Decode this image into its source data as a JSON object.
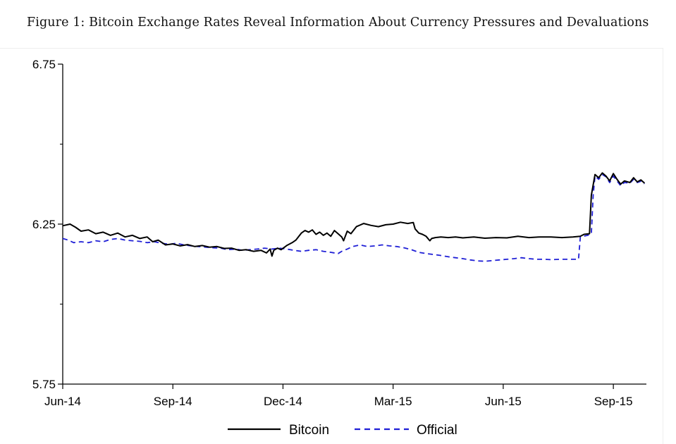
{
  "figure": {
    "title": "Figure 1: Bitcoin Exchange Rates Reveal Information About Currency Pressures and Devaluations"
  },
  "chart_data": {
    "type": "line",
    "title": "Figure 1: Bitcoin Exchange Rates Reveal Information About Currency Pressures and Devaluations",
    "xlabel": "",
    "ylabel": "",
    "x_unit": "months since Jun-14",
    "xlim": [
      0,
      15.9
    ],
    "ylim": [
      5.75,
      6.75
    ],
    "y_ticks": [
      5.75,
      6.25,
      6.75
    ],
    "y_tick_labels": [
      "5.75",
      "6.25",
      "6.75"
    ],
    "y_minor_ticks": [
      6.0,
      6.5
    ],
    "x_ticks": [
      0,
      3,
      6,
      9,
      12,
      15
    ],
    "x_tick_labels": [
      "Jun-14",
      "Sep-14",
      "Dec-14",
      "Mar-15",
      "Jun-15",
      "Sep-15"
    ],
    "grid": false,
    "legend_position": "bottom-center",
    "series": [
      {
        "name": "Bitcoin",
        "color": "#000000",
        "style": "solid",
        "points": [
          [
            0.0,
            6.245
          ],
          [
            0.2,
            6.25
          ],
          [
            0.35,
            6.24
          ],
          [
            0.5,
            6.228
          ],
          [
            0.7,
            6.232
          ],
          [
            0.9,
            6.22
          ],
          [
            1.1,
            6.225
          ],
          [
            1.3,
            6.215
          ],
          [
            1.5,
            6.222
          ],
          [
            1.7,
            6.21
          ],
          [
            1.9,
            6.215
          ],
          [
            2.1,
            6.205
          ],
          [
            2.3,
            6.21
          ],
          [
            2.45,
            6.195
          ],
          [
            2.6,
            6.2
          ],
          [
            2.8,
            6.185
          ],
          [
            3.0,
            6.188
          ],
          [
            3.2,
            6.182
          ],
          [
            3.4,
            6.186
          ],
          [
            3.6,
            6.18
          ],
          [
            3.8,
            6.183
          ],
          [
            4.0,
            6.178
          ],
          [
            4.2,
            6.18
          ],
          [
            4.4,
            6.174
          ],
          [
            4.6,
            6.175
          ],
          [
            4.8,
            6.168
          ],
          [
            5.0,
            6.17
          ],
          [
            5.2,
            6.165
          ],
          [
            5.4,
            6.168
          ],
          [
            5.55,
            6.16
          ],
          [
            5.65,
            6.172
          ],
          [
            5.7,
            6.15
          ],
          [
            5.75,
            6.168
          ],
          [
            5.85,
            6.175
          ],
          [
            5.95,
            6.17
          ],
          [
            6.1,
            6.183
          ],
          [
            6.25,
            6.192
          ],
          [
            6.35,
            6.2
          ],
          [
            6.5,
            6.222
          ],
          [
            6.6,
            6.23
          ],
          [
            6.7,
            6.225
          ],
          [
            6.8,
            6.232
          ],
          [
            6.9,
            6.218
          ],
          [
            7.0,
            6.225
          ],
          [
            7.1,
            6.215
          ],
          [
            7.2,
            6.222
          ],
          [
            7.3,
            6.212
          ],
          [
            7.4,
            6.23
          ],
          [
            7.5,
            6.22
          ],
          [
            7.6,
            6.21
          ],
          [
            7.65,
            6.198
          ],
          [
            7.75,
            6.228
          ],
          [
            7.85,
            6.22
          ],
          [
            8.0,
            6.242
          ],
          [
            8.2,
            6.252
          ],
          [
            8.4,
            6.246
          ],
          [
            8.6,
            6.242
          ],
          [
            8.8,
            6.248
          ],
          [
            9.0,
            6.25
          ],
          [
            9.2,
            6.256
          ],
          [
            9.4,
            6.252
          ],
          [
            9.55,
            6.255
          ],
          [
            9.6,
            6.235
          ],
          [
            9.7,
            6.222
          ],
          [
            9.8,
            6.218
          ],
          [
            9.9,
            6.212
          ],
          [
            10.0,
            6.198
          ],
          [
            10.05,
            6.205
          ],
          [
            10.15,
            6.208
          ],
          [
            10.3,
            6.21
          ],
          [
            10.5,
            6.208
          ],
          [
            10.7,
            6.21
          ],
          [
            10.9,
            6.207
          ],
          [
            11.2,
            6.21
          ],
          [
            11.5,
            6.206
          ],
          [
            11.8,
            6.208
          ],
          [
            12.1,
            6.207
          ],
          [
            12.4,
            6.212
          ],
          [
            12.7,
            6.208
          ],
          [
            13.0,
            6.21
          ],
          [
            13.3,
            6.21
          ],
          [
            13.6,
            6.208
          ],
          [
            13.9,
            6.21
          ],
          [
            14.1,
            6.212
          ],
          [
            14.2,
            6.218
          ],
          [
            14.35,
            6.22
          ],
          [
            14.4,
            6.34
          ],
          [
            14.5,
            6.405
          ],
          [
            14.6,
            6.395
          ],
          [
            14.7,
            6.41
          ],
          [
            14.8,
            6.4
          ],
          [
            14.9,
            6.385
          ],
          [
            15.0,
            6.408
          ],
          [
            15.1,
            6.39
          ],
          [
            15.2,
            6.375
          ],
          [
            15.3,
            6.385
          ],
          [
            15.45,
            6.38
          ],
          [
            15.55,
            6.395
          ],
          [
            15.65,
            6.382
          ],
          [
            15.75,
            6.388
          ],
          [
            15.85,
            6.378
          ]
        ]
      },
      {
        "name": "Official",
        "color": "#1f1fd6",
        "style": "dashed",
        "points": [
          [
            0.0,
            6.205
          ],
          [
            0.15,
            6.2
          ],
          [
            0.3,
            6.192
          ],
          [
            0.5,
            6.195
          ],
          [
            0.7,
            6.192
          ],
          [
            0.9,
            6.198
          ],
          [
            1.1,
            6.195
          ],
          [
            1.3,
            6.202
          ],
          [
            1.5,
            6.205
          ],
          [
            1.7,
            6.2
          ],
          [
            1.9,
            6.198
          ],
          [
            2.1,
            6.196
          ],
          [
            2.3,
            6.192
          ],
          [
            2.5,
            6.195
          ],
          [
            2.7,
            6.19
          ],
          [
            2.9,
            6.187
          ],
          [
            3.1,
            6.19
          ],
          [
            3.3,
            6.185
          ],
          [
            3.5,
            6.182
          ],
          [
            3.7,
            6.18
          ],
          [
            3.9,
            6.178
          ],
          [
            4.1,
            6.176
          ],
          [
            4.3,
            6.175
          ],
          [
            4.5,
            6.17
          ],
          [
            4.7,
            6.172
          ],
          [
            4.9,
            6.168
          ],
          [
            5.1,
            6.17
          ],
          [
            5.3,
            6.172
          ],
          [
            5.5,
            6.175
          ],
          [
            5.7,
            6.172
          ],
          [
            5.9,
            6.175
          ],
          [
            6.1,
            6.172
          ],
          [
            6.3,
            6.168
          ],
          [
            6.5,
            6.165
          ],
          [
            6.7,
            6.168
          ],
          [
            6.9,
            6.17
          ],
          [
            7.1,
            6.165
          ],
          [
            7.3,
            6.162
          ],
          [
            7.5,
            6.158
          ],
          [
            7.6,
            6.165
          ],
          [
            7.75,
            6.172
          ],
          [
            7.9,
            6.18
          ],
          [
            8.1,
            6.185
          ],
          [
            8.3,
            6.18
          ],
          [
            8.5,
            6.182
          ],
          [
            8.7,
            6.185
          ],
          [
            8.9,
            6.182
          ],
          [
            9.1,
            6.18
          ],
          [
            9.3,
            6.176
          ],
          [
            9.5,
            6.17
          ],
          [
            9.7,
            6.162
          ],
          [
            9.9,
            6.158
          ],
          [
            10.1,
            6.155
          ],
          [
            10.3,
            6.152
          ],
          [
            10.5,
            6.148
          ],
          [
            10.7,
            6.145
          ],
          [
            10.9,
            6.142
          ],
          [
            11.1,
            6.138
          ],
          [
            11.3,
            6.135
          ],
          [
            11.5,
            6.134
          ],
          [
            11.7,
            6.136
          ],
          [
            11.9,
            6.138
          ],
          [
            12.1,
            6.14
          ],
          [
            12.3,
            6.142
          ],
          [
            12.5,
            6.145
          ],
          [
            12.7,
            6.142
          ],
          [
            12.9,
            6.14
          ],
          [
            13.1,
            6.14
          ],
          [
            13.3,
            6.139
          ],
          [
            13.6,
            6.14
          ],
          [
            13.9,
            6.14
          ],
          [
            14.05,
            6.14
          ],
          [
            14.1,
            6.21
          ],
          [
            14.3,
            6.215
          ],
          [
            14.4,
            6.22
          ],
          [
            14.45,
            6.34
          ],
          [
            14.5,
            6.4
          ],
          [
            14.6,
            6.39
          ],
          [
            14.7,
            6.405
          ],
          [
            14.8,
            6.398
          ],
          [
            14.9,
            6.38
          ],
          [
            15.0,
            6.4
          ],
          [
            15.1,
            6.385
          ],
          [
            15.2,
            6.37
          ],
          [
            15.3,
            6.38
          ],
          [
            15.45,
            6.378
          ],
          [
            15.55,
            6.39
          ],
          [
            15.65,
            6.38
          ],
          [
            15.75,
            6.384
          ],
          [
            15.85,
            6.376
          ]
        ]
      }
    ]
  }
}
